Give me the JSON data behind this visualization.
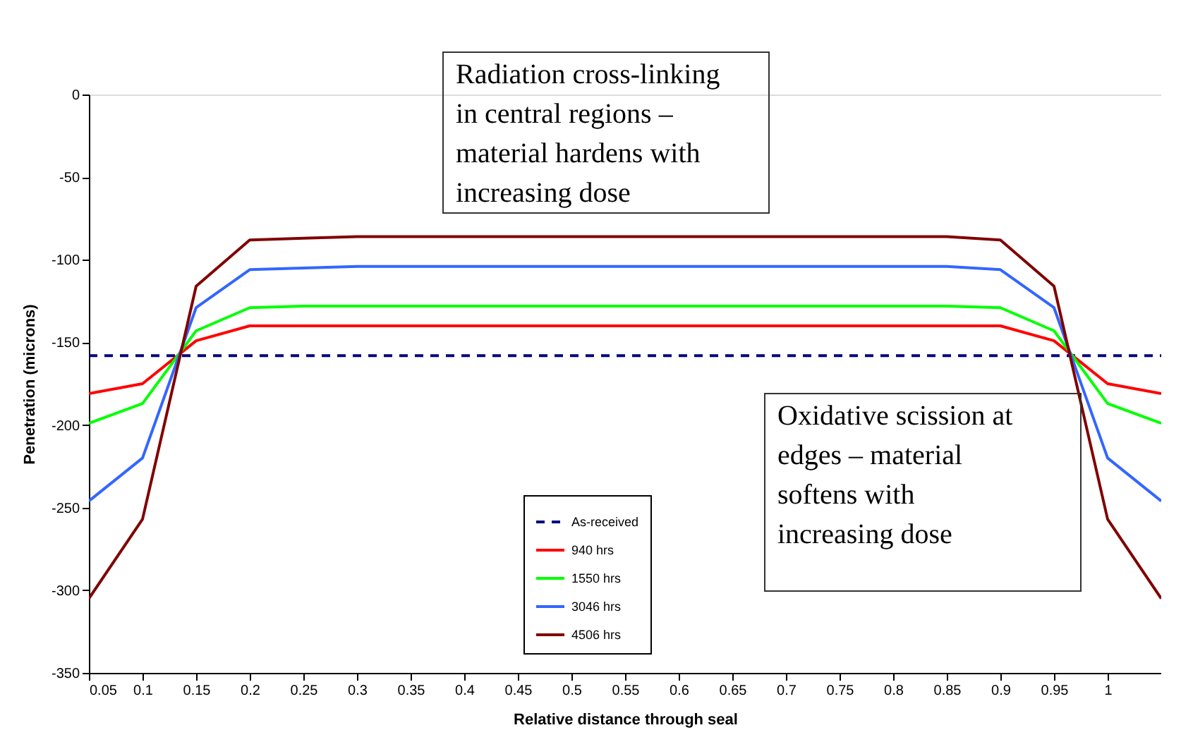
{
  "chart_data": {
    "type": "line",
    "xlabel": "Relative distance through seal",
    "ylabel": "Penetration (microns)",
    "x": [
      0.05,
      0.1,
      0.15,
      0.2,
      0.25,
      0.3,
      0.35,
      0.4,
      0.45,
      0.5,
      0.55,
      0.6,
      0.65,
      0.7,
      0.75,
      0.8,
      0.85,
      0.9,
      0.95,
      1.0,
      1.05
    ],
    "series": [
      {
        "name": "As-received",
        "color": "#000080",
        "line_style": "dashed",
        "values": [
          -158,
          -158,
          -158,
          -158,
          -158,
          -158,
          -158,
          -158,
          -158,
          -158,
          -158,
          -158,
          -158,
          -158,
          -158,
          -158,
          -158,
          -158,
          -158,
          -158,
          -158
        ]
      },
      {
        "name": "940 hrs",
        "color": "#ff0000",
        "values": [
          -181,
          -175,
          -149,
          -140,
          -140,
          -140,
          -140,
          -140,
          -140,
          -140,
          -140,
          -140,
          -140,
          -140,
          -140,
          -140,
          -140,
          -140,
          -149,
          -175,
          -181
        ]
      },
      {
        "name": "1550 hrs",
        "color": "#00ff00",
        "values": [
          -199,
          -187,
          -143,
          -129,
          -128,
          -128,
          -128,
          -128,
          -128,
          -128,
          -128,
          -128,
          -128,
          -128,
          -128,
          -128,
          -128,
          -129,
          -143,
          -187,
          -199
        ]
      },
      {
        "name": "3046 hrs",
        "color": "#3366ff",
        "values": [
          -246,
          -220,
          -129,
          -106,
          -105,
          -104,
          -104,
          -104,
          -104,
          -104,
          -104,
          -104,
          -104,
          -104,
          -104,
          -104,
          -104,
          -106,
          -129,
          -220,
          -246
        ]
      },
      {
        "name": "4506 hrs",
        "color": "#800000",
        "values": [
          -305,
          -257,
          -116,
          -88,
          -87,
          -86,
          -86,
          -86,
          -86,
          -86,
          -86,
          -86,
          -86,
          -86,
          -86,
          -86,
          -86,
          -88,
          -116,
          -257,
          -305
        ]
      }
    ],
    "xlim": [
      0.05,
      1.05
    ],
    "xticks": [
      0.05,
      0.1,
      0.15,
      0.2,
      0.25,
      0.3,
      0.35,
      0.4,
      0.45,
      0.5,
      0.55,
      0.6,
      0.65,
      0.7,
      0.75,
      0.8,
      0.85,
      0.9,
      0.95,
      1
    ],
    "ylim": [
      -350,
      0
    ],
    "yticks": [
      0,
      -50,
      -100,
      -150,
      -200,
      -250,
      -300,
      -350
    ],
    "grid": false,
    "legend": "bottom",
    "marker": "none",
    "line_style": "solid",
    "annotations": [
      "Radiation cross-linking\nin central regions –\nmaterial hardens with\nincreasing dose",
      "Oxidative scission at\nedges – material\nsoftens with\nincreasing dose"
    ]
  }
}
